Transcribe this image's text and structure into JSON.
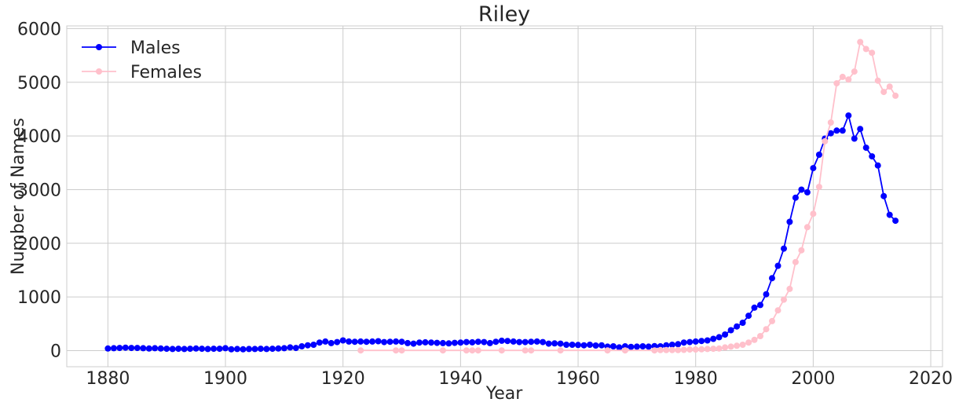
{
  "chart_data": {
    "type": "line",
    "title": "Riley",
    "xlabel": "Year",
    "ylabel": "Number of Names",
    "xlim": [
      1873,
      2022
    ],
    "ylim": [
      -300,
      6050
    ],
    "xticks": [
      1880,
      1900,
      1920,
      1940,
      1960,
      1980,
      2000,
      2020
    ],
    "yticks": [
      0,
      1000,
      2000,
      3000,
      4000,
      5000,
      6000
    ],
    "grid": true,
    "legend_position": "top-left",
    "series": [
      {
        "name": "Males",
        "color": "#0000ff",
        "points": [
          [
            1880,
            40
          ],
          [
            1881,
            45
          ],
          [
            1882,
            50
          ],
          [
            1883,
            55
          ],
          [
            1884,
            50
          ],
          [
            1885,
            50
          ],
          [
            1886,
            45
          ],
          [
            1887,
            40
          ],
          [
            1888,
            45
          ],
          [
            1889,
            40
          ],
          [
            1890,
            35
          ],
          [
            1891,
            30
          ],
          [
            1892,
            35
          ],
          [
            1893,
            30
          ],
          [
            1894,
            35
          ],
          [
            1895,
            40
          ],
          [
            1896,
            35
          ],
          [
            1897,
            30
          ],
          [
            1898,
            35
          ],
          [
            1899,
            35
          ],
          [
            1900,
            45
          ],
          [
            1901,
            25
          ],
          [
            1902,
            30
          ],
          [
            1903,
            25
          ],
          [
            1904,
            30
          ],
          [
            1905,
            30
          ],
          [
            1906,
            35
          ],
          [
            1907,
            30
          ],
          [
            1908,
            35
          ],
          [
            1909,
            40
          ],
          [
            1910,
            45
          ],
          [
            1911,
            60
          ],
          [
            1912,
            50
          ],
          [
            1913,
            80
          ],
          [
            1914,
            100
          ],
          [
            1915,
            110
          ],
          [
            1916,
            150
          ],
          [
            1917,
            170
          ],
          [
            1918,
            140
          ],
          [
            1919,
            160
          ],
          [
            1920,
            190
          ],
          [
            1921,
            170
          ],
          [
            1922,
            165
          ],
          [
            1923,
            170
          ],
          [
            1924,
            165
          ],
          [
            1925,
            170
          ],
          [
            1926,
            175
          ],
          [
            1927,
            160
          ],
          [
            1928,
            165
          ],
          [
            1929,
            170
          ],
          [
            1930,
            165
          ],
          [
            1931,
            140
          ],
          [
            1932,
            130
          ],
          [
            1933,
            150
          ],
          [
            1934,
            155
          ],
          [
            1935,
            150
          ],
          [
            1936,
            145
          ],
          [
            1937,
            140
          ],
          [
            1938,
            135
          ],
          [
            1939,
            145
          ],
          [
            1940,
            150
          ],
          [
            1941,
            160
          ],
          [
            1942,
            155
          ],
          [
            1943,
            165
          ],
          [
            1944,
            160
          ],
          [
            1945,
            140
          ],
          [
            1946,
            165
          ],
          [
            1947,
            185
          ],
          [
            1948,
            180
          ],
          [
            1949,
            170
          ],
          [
            1950,
            160
          ],
          [
            1951,
            160
          ],
          [
            1952,
            165
          ],
          [
            1953,
            170
          ],
          [
            1954,
            160
          ],
          [
            1955,
            130
          ],
          [
            1956,
            135
          ],
          [
            1957,
            130
          ],
          [
            1958,
            110
          ],
          [
            1959,
            110
          ],
          [
            1960,
            105
          ],
          [
            1961,
            100
          ],
          [
            1962,
            110
          ],
          [
            1963,
            95
          ],
          [
            1964,
            100
          ],
          [
            1965,
            75
          ],
          [
            1966,
            80
          ],
          [
            1967,
            60
          ],
          [
            1968,
            80
          ],
          [
            1969,
            70
          ],
          [
            1970,
            75
          ],
          [
            1971,
            80
          ],
          [
            1972,
            75
          ],
          [
            1973,
            85
          ],
          [
            1974,
            80
          ],
          [
            1975,
            100
          ],
          [
            1976,
            110
          ],
          [
            1977,
            120
          ],
          [
            1978,
            150
          ],
          [
            1979,
            160
          ],
          [
            1980,
            170
          ],
          [
            1981,
            180
          ],
          [
            1982,
            190
          ],
          [
            1983,
            220
          ],
          [
            1984,
            250
          ],
          [
            1985,
            300
          ],
          [
            1986,
            380
          ],
          [
            1987,
            450
          ],
          [
            1988,
            520
          ],
          [
            1989,
            650
          ],
          [
            1990,
            800
          ],
          [
            1991,
            850
          ],
          [
            1992,
            1050
          ],
          [
            1993,
            1350
          ],
          [
            1994,
            1580
          ],
          [
            1995,
            1900
          ],
          [
            1996,
            2400
          ],
          [
            1997,
            2850
          ],
          [
            1998,
            3000
          ],
          [
            1999,
            2950
          ],
          [
            2000,
            3400
          ],
          [
            2001,
            3650
          ],
          [
            2002,
            3950
          ],
          [
            2003,
            4050
          ],
          [
            2004,
            4100
          ],
          [
            2005,
            4100
          ],
          [
            2006,
            4380
          ],
          [
            2007,
            3950
          ],
          [
            2008,
            4130
          ],
          [
            2009,
            3780
          ],
          [
            2010,
            3620
          ],
          [
            2011,
            3450
          ],
          [
            2012,
            2880
          ],
          [
            2013,
            2530
          ],
          [
            2014,
            2420
          ]
        ]
      },
      {
        "name": "Females",
        "color": "#ffc0cb",
        "points": [
          [
            1923,
            5
          ],
          [
            1929,
            5
          ],
          [
            1930,
            5
          ],
          [
            1937,
            5
          ],
          [
            1941,
            5
          ],
          [
            1942,
            5
          ],
          [
            1943,
            5
          ],
          [
            1947,
            5
          ],
          [
            1951,
            5
          ],
          [
            1952,
            5
          ],
          [
            1957,
            5
          ],
          [
            1965,
            5
          ],
          [
            1968,
            5
          ],
          [
            1973,
            5
          ],
          [
            1974,
            10
          ],
          [
            1975,
            10
          ],
          [
            1976,
            10
          ],
          [
            1977,
            10
          ],
          [
            1978,
            15
          ],
          [
            1979,
            20
          ],
          [
            1980,
            20
          ],
          [
            1981,
            25
          ],
          [
            1982,
            30
          ],
          [
            1983,
            35
          ],
          [
            1984,
            40
          ],
          [
            1985,
            60
          ],
          [
            1986,
            75
          ],
          [
            1987,
            90
          ],
          [
            1988,
            110
          ],
          [
            1989,
            150
          ],
          [
            1990,
            200
          ],
          [
            1991,
            270
          ],
          [
            1992,
            400
          ],
          [
            1993,
            550
          ],
          [
            1994,
            750
          ],
          [
            1995,
            950
          ],
          [
            1996,
            1150
          ],
          [
            1997,
            1650
          ],
          [
            1998,
            1870
          ],
          [
            1999,
            2300
          ],
          [
            2000,
            2550
          ],
          [
            2001,
            3050
          ],
          [
            2002,
            3900
          ],
          [
            2003,
            4250
          ],
          [
            2004,
            4980
          ],
          [
            2005,
            5100
          ],
          [
            2006,
            5050
          ],
          [
            2007,
            5200
          ],
          [
            2008,
            5750
          ],
          [
            2009,
            5620
          ],
          [
            2010,
            5550
          ],
          [
            2011,
            5030
          ],
          [
            2012,
            4820
          ],
          [
            2013,
            4920
          ],
          [
            2014,
            4750
          ]
        ]
      }
    ]
  }
}
